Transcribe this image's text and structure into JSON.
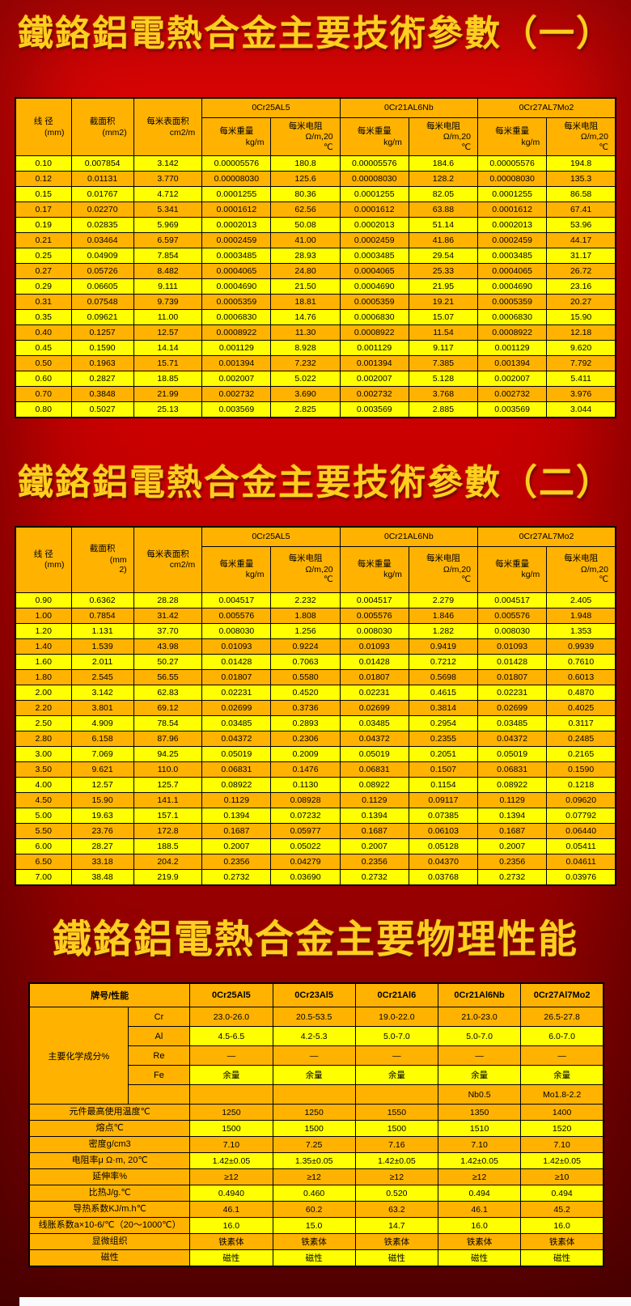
{
  "colors": {
    "background_red": "#cb0000",
    "background_dark_red": "#5a0000",
    "title_gold": "#ffcf1f",
    "cell_yellow": "#ffff00",
    "cell_orange": "#ffb300",
    "table_border": "#000000"
  },
  "titles": {
    "table1": "鐵鉻鋁電熱合金主要技術參數（一）",
    "table2": "鐵鉻鋁電熱合金主要技術參數（二）",
    "physical": "鐵鉻鋁電熱合金主要物理性能"
  },
  "param_headers": {
    "wire": "线 径",
    "wire_unit": "(mm)",
    "area": "截面积",
    "area_unit1": "(mm2)",
    "area_unit2": "(mm\n2)",
    "surface": "每米表面积",
    "surface_unit": "cm2/m",
    "alloys": [
      "0Cr25AL5",
      "0Cr21AL6Nb",
      "0Cr27AL7Mo2"
    ],
    "weight": "每米重量",
    "weight_unit": "kg/m",
    "resistance": "每米电阻",
    "resistance_unit": "Ω/m,20\n℃"
  },
  "table1": {
    "rows": [
      [
        "0.10",
        "0.007854",
        "3.142",
        "0.00005576",
        "180.8",
        "0.00005576",
        "184.6",
        "0.00005576",
        "194.8"
      ],
      [
        "0.12",
        "0.01131",
        "3.770",
        "0.00008030",
        "125.6",
        "0.00008030",
        "128.2",
        "0.00008030",
        "135.3"
      ],
      [
        "0.15",
        "0.01767",
        "4.712",
        "0.0001255",
        "80.36",
        "0.0001255",
        "82.05",
        "0.0001255",
        "86.58"
      ],
      [
        "0.17",
        "0.02270",
        "5.341",
        "0.0001612",
        "62.56",
        "0.0001612",
        "63.88",
        "0.0001612",
        "67.41"
      ],
      [
        "0.19",
        "0.02835",
        "5.969",
        "0.0002013",
        "50.08",
        "0.0002013",
        "51.14",
        "0.0002013",
        "53.96"
      ],
      [
        "0.21",
        "0.03464",
        "6.597",
        "0.0002459",
        "41.00",
        "0.0002459",
        "41.86",
        "0.0002459",
        "44.17"
      ],
      [
        "0.25",
        "0.04909",
        "7.854",
        "0.0003485",
        "28.93",
        "0.0003485",
        "29.54",
        "0.0003485",
        "31.17"
      ],
      [
        "0.27",
        "0.05726",
        "8.482",
        "0.0004065",
        "24.80",
        "0.0004065",
        "25.33",
        "0.0004065",
        "26.72"
      ],
      [
        "0.29",
        "0.06605",
        "9.111",
        "0.0004690",
        "21.50",
        "0.0004690",
        "21.95",
        "0.0004690",
        "23.16"
      ],
      [
        "0.31",
        "0.07548",
        "9.739",
        "0.0005359",
        "18.81",
        "0.0005359",
        "19.21",
        "0.0005359",
        "20.27"
      ],
      [
        "0.35",
        "0.09621",
        "11.00",
        "0.0006830",
        "14.76",
        "0.0006830",
        "15.07",
        "0.0006830",
        "15.90"
      ],
      [
        "0.40",
        "0.1257",
        "12.57",
        "0.0008922",
        "11.30",
        "0.0008922",
        "11.54",
        "0.0008922",
        "12.18"
      ],
      [
        "0.45",
        "0.1590",
        "14.14",
        "0.001129",
        "8.928",
        "0.001129",
        "9.117",
        "0.001129",
        "9.620"
      ],
      [
        "0.50",
        "0.1963",
        "15.71",
        "0.001394",
        "7.232",
        "0.001394",
        "7.385",
        "0.001394",
        "7.792"
      ],
      [
        "0.60",
        "0.2827",
        "18.85",
        "0.002007",
        "5.022",
        "0.002007",
        "5.128",
        "0.002007",
        "5.411"
      ],
      [
        "0.70",
        "0.3848",
        "21.99",
        "0.002732",
        "3.690",
        "0.002732",
        "3.768",
        "0.002732",
        "3.976"
      ],
      [
        "0.80",
        "0.5027",
        "25.13",
        "0.003569",
        "2.825",
        "0.003569",
        "2.885",
        "0.003569",
        "3.044"
      ]
    ]
  },
  "table2": {
    "rows": [
      [
        "0.90",
        "0.6362",
        "28.28",
        "0.004517",
        "2.232",
        "0.004517",
        "2.279",
        "0.004517",
        "2.405"
      ],
      [
        "1.00",
        "0.7854",
        "31.42",
        "0.005576",
        "1.808",
        "0.005576",
        "1.846",
        "0.005576",
        "1.948"
      ],
      [
        "1.20",
        "1.131",
        "37.70",
        "0.008030",
        "1.256",
        "0.008030",
        "1.282",
        "0.008030",
        "1.353"
      ],
      [
        "1.40",
        "1.539",
        "43.98",
        "0.01093",
        "0.9224",
        "0.01093",
        "0.9419",
        "0.01093",
        "0.9939"
      ],
      [
        "1.60",
        "2.011",
        "50.27",
        "0.01428",
        "0.7063",
        "0.01428",
        "0.7212",
        "0.01428",
        "0.7610"
      ],
      [
        "1.80",
        "2.545",
        "56.55",
        "0.01807",
        "0.5580",
        "0.01807",
        "0.5698",
        "0.01807",
        "0.6013"
      ],
      [
        "2.00",
        "3.142",
        "62.83",
        "0.02231",
        "0.4520",
        "0.02231",
        "0.4615",
        "0.02231",
        "0.4870"
      ],
      [
        "2.20",
        "3.801",
        "69.12",
        "0.02699",
        "0.3736",
        "0.02699",
        "0.3814",
        "0.02699",
        "0.4025"
      ],
      [
        "2.50",
        "4.909",
        "78.54",
        "0.03485",
        "0.2893",
        "0.03485",
        "0.2954",
        "0.03485",
        "0.3117"
      ],
      [
        "2.80",
        "6.158",
        "87.96",
        "0.04372",
        "0.2306",
        "0.04372",
        "0.2355",
        "0.04372",
        "0.2485"
      ],
      [
        "3.00",
        "7.069",
        "94.25",
        "0.05019",
        "0.2009",
        "0.05019",
        "0.2051",
        "0.05019",
        "0.2165"
      ],
      [
        "3.50",
        "9.621",
        "110.0",
        "0.06831",
        "0.1476",
        "0.06831",
        "0.1507",
        "0.06831",
        "0.1590"
      ],
      [
        "4.00",
        "12.57",
        "125.7",
        "0.08922",
        "0.1130",
        "0.08922",
        "0.1154",
        "0.08922",
        "0.1218"
      ],
      [
        "4.50",
        "15.90",
        "141.1",
        "0.1129",
        "0.08928",
        "0.1129",
        "0.09117",
        "0.1129",
        "0.09620"
      ],
      [
        "5.00",
        "19.63",
        "157.1",
        "0.1394",
        "0.07232",
        "0.1394",
        "0.07385",
        "0.1394",
        "0.07792"
      ],
      [
        "5.50",
        "23.76",
        "172.8",
        "0.1687",
        "0.05977",
        "0.1687",
        "0.06103",
        "0.1687",
        "0.06440"
      ],
      [
        "6.00",
        "28.27",
        "188.5",
        "0.2007",
        "0.05022",
        "0.2007",
        "0.05128",
        "0.2007",
        "0.05411"
      ],
      [
        "6.50",
        "33.18",
        "204.2",
        "0.2356",
        "0.04279",
        "0.2356",
        "0.04370",
        "0.2356",
        "0.04611"
      ],
      [
        "7.00",
        "38.48",
        "219.9",
        "0.2732",
        "0.03690",
        "0.2732",
        "0.03768",
        "0.2732",
        "0.03976"
      ]
    ]
  },
  "table3": {
    "corner": "牌号/性能",
    "alloys": [
      "0Cr25Al5",
      "0Cr23Al5",
      "0Cr21Al6",
      "0Cr21Al6Nb",
      "0Cr27Al7Mo2"
    ],
    "chem": {
      "group_label": "主要化学成分%",
      "rows": [
        {
          "el": "Cr",
          "values": [
            "23.0-26.0",
            "20.5-53.5",
            "19.0-22.0",
            "21.0-23.0",
            "26.5-27.8"
          ]
        },
        {
          "el": "Al",
          "values": [
            "4.5-6.5",
            "4.2-5.3",
            "5.0-7.0",
            "5.0-7.0",
            "6.0-7.0"
          ]
        },
        {
          "el": "Re",
          "values": [
            "—",
            "—",
            "—",
            "—",
            "—"
          ]
        },
        {
          "el": "Fe",
          "values": [
            "余量",
            "余量",
            "余量",
            "余量",
            "余量"
          ]
        },
        {
          "el": "",
          "values": [
            "",
            "",
            "",
            "Nb0.5",
            "Mo1.8-2.2"
          ]
        }
      ]
    },
    "properties": [
      {
        "label": "元件最高使用温度℃",
        "values": [
          "1250",
          "1250",
          "1550",
          "1350",
          "1400"
        ]
      },
      {
        "label": "熔点℃",
        "values": [
          "1500",
          "1500",
          "1500",
          "1510",
          "1520"
        ]
      },
      {
        "label": "密度g/cm3",
        "values": [
          "7.10",
          "7.25",
          "7.16",
          "7.10",
          "7.10"
        ]
      },
      {
        "label": "电阻率μ Ω·m, 20℃",
        "values": [
          "1.42±0.05",
          "1.35±0.05",
          "1.42±0.05",
          "1.42±0.05",
          "1.42±0.05"
        ]
      },
      {
        "label": "延伸率%",
        "values": [
          "≥12",
          "≥12",
          "≥12",
          "≥12",
          "≥10"
        ]
      },
      {
        "label": "比热J/g.℃",
        "values": [
          "0.4940",
          "0.460",
          "0.520",
          "0.494",
          "0.494"
        ]
      },
      {
        "label": "导热系数KJ/m.h℃",
        "values": [
          "46.1",
          "60.2",
          "63.2",
          "46.1",
          "45.2"
        ]
      },
      {
        "label": "线胀系数a×10-6/℃（20～1000℃）",
        "values": [
          "16.0",
          "15.0",
          "14.7",
          "16.0",
          "16.0"
        ]
      },
      {
        "label": "显微组织",
        "values": [
          "铁素体",
          "铁素体",
          "铁素体",
          "铁素体",
          "铁素体"
        ]
      },
      {
        "label": "磁性",
        "values": [
          "磁性",
          "磁性",
          "磁性",
          "磁性",
          "磁性"
        ]
      }
    ]
  }
}
